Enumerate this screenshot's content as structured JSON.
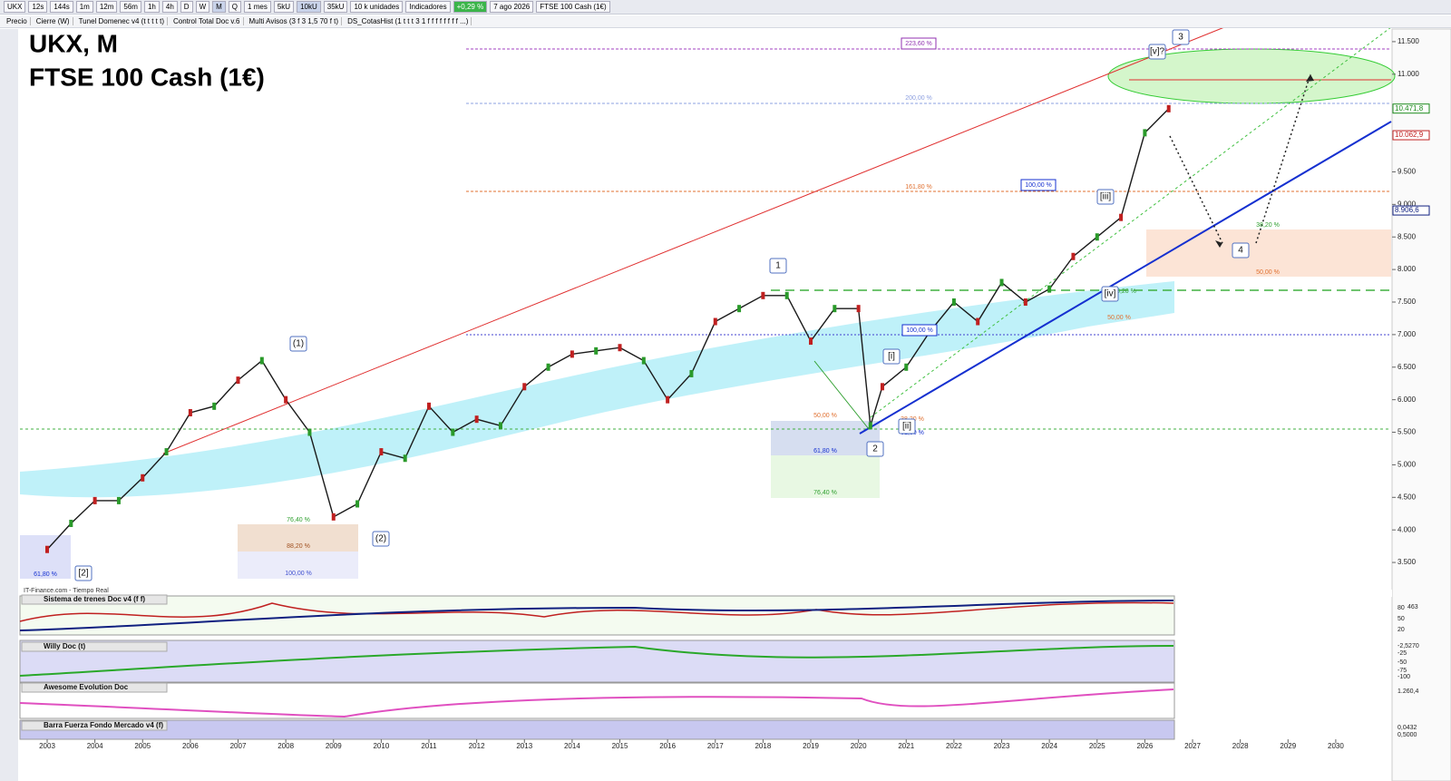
{
  "toolbar": {
    "items": [
      "UKX",
      "12s",
      "144s",
      "1m",
      "12m",
      "56m",
      "1h",
      "4h",
      "D",
      "W",
      "M",
      "Q",
      "1 mes",
      "5kU",
      "10kU",
      "35kU",
      "10 k unidades",
      "Indicadores",
      "+0,29 %",
      "7 ago 2026",
      "FTSE 100 Cash (1€)"
    ],
    "indicators": [
      "Precio",
      "Cierre (W)",
      "Tunel Domenec v4 (t t t t t)",
      "Control Total Doc v.6",
      "Multi Avisos (3 f 3 1,5 70 f t)",
      "DS_CotasHist (1 t t t 3 1 f f f f f f f f ...)"
    ]
  },
  "chart_data": {
    "type": "line",
    "title": "UKX, M",
    "subtitle": "FTSE 100 Cash (1€)",
    "color": "#1a1a1a",
    "x": [
      2003.0,
      2003.5,
      2004.0,
      2004.5,
      2005.0,
      2005.5,
      2006.0,
      2006.5,
      2007.0,
      2007.5,
      2008.0,
      2008.5,
      2009.0,
      2009.5,
      2010.0,
      2010.5,
      2011.0,
      2011.5,
      2012.0,
      2012.5,
      2013.0,
      2013.5,
      2014.0,
      2014.5,
      2015.0,
      2015.5,
      2016.0,
      2016.5,
      2017.0,
      2017.5,
      2018.0,
      2018.5,
      2019.0,
      2019.5,
      2020.0,
      2020.25,
      2020.5,
      2021.0,
      2021.5,
      2022.0,
      2022.5,
      2023.0,
      2023.5,
      2024.0,
      2024.5,
      2025.0,
      2025.5,
      2026.0,
      2026.5
    ],
    "values": [
      3700,
      4100,
      4450,
      4450,
      4800,
      5200,
      5800,
      5900,
      6300,
      6600,
      6000,
      5500,
      4200,
      4400,
      5200,
      5100,
      5900,
      5500,
      5700,
      5600,
      6200,
      6500,
      6700,
      6750,
      6800,
      6600,
      6000,
      6400,
      7200,
      7400,
      7600,
      7600,
      6900,
      7400,
      7400,
      5600,
      6200,
      6500,
      7050,
      7500,
      7200,
      7800,
      7500,
      7700,
      8200,
      8500,
      8800,
      10100,
      10470
    ],
    "xlim": [
      2002.43,
      2031.18
    ],
    "ylim": [
      3083,
      11694
    ],
    "xticks": [
      2003,
      2004,
      2005,
      2006,
      2007,
      2008,
      2009,
      2010,
      2011,
      2012,
      2013,
      2014,
      2015,
      2016,
      2017,
      2018,
      2019,
      2020,
      2021,
      2022,
      2023,
      2024,
      2025,
      2026,
      2027,
      2028,
      2029,
      2030
    ],
    "yticks": [
      {
        "value": 3500,
        "label": "3.500"
      },
      {
        "value": 4000,
        "label": "4.000"
      },
      {
        "value": 4500,
        "label": "4.500"
      },
      {
        "value": 5000,
        "label": "5.000"
      },
      {
        "value": 5500,
        "label": "5.500"
      },
      {
        "value": 6000,
        "label": "6.000"
      },
      {
        "value": 6500,
        "label": "6.500"
      },
      {
        "value": 7000,
        "label": "7.000"
      },
      {
        "value": 7500,
        "label": "7.500"
      },
      {
        "value": 8000,
        "label": "8.000"
      },
      {
        "value": 8500,
        "label": "8.500"
      },
      {
        "value": 9000,
        "label": "9.000"
      },
      {
        "value": 9500,
        "label": "9.500"
      },
      {
        "value": 11000,
        "label": "11.000"
      },
      {
        "value": 11500,
        "label": "11.500"
      }
    ],
    "price_tags": [
      {
        "value": 10471.8,
        "label": "10.471,8",
        "color": "#1a8a1a"
      },
      {
        "value": 10062.9,
        "label": "10.062,9",
        "color": "#c02020"
      },
      {
        "value": 8906.6,
        "label": "8.906,6",
        "color": "#102080"
      }
    ]
  },
  "fib_labels": [
    "223,60 %",
    "200,00 %",
    "161,80 %",
    "100,00 %",
    "38,20 %",
    "50,00 %",
    "38,20 %",
    "50,00 %",
    "100,00 %",
    "50,00 %",
    "61,80 %",
    "76,40 %",
    "38,20 %",
    "61,80 %",
    "76,40 %",
    "88,20 %",
    "100,00 %",
    "61,80 %"
  ],
  "wave_labels": [
    "(1)",
    "(2)",
    "[2]",
    "1",
    "2",
    "3",
    "4",
    "[i]",
    "[ii]",
    "[iii]",
    "[iv]",
    "[v]?"
  ],
  "footer": "IT-Finance.com - Tiempo Real",
  "panels": [
    {
      "name": "Sistema de trenes Doc v4 (f f)",
      "scale": [
        "463",
        "80",
        "50",
        "20"
      ]
    },
    {
      "name": "Willy Doc (t)",
      "scale": [
        "-2,5270",
        "-25",
        "-50",
        "-75",
        "-100"
      ]
    },
    {
      "name": "Awesome Evolution Doc",
      "scale": [
        "1.260,4"
      ]
    },
    {
      "name": "Barra Fuerza Fondo Mercado v4 (f)",
      "scale": [
        "0,0432",
        "0,5000"
      ]
    }
  ]
}
